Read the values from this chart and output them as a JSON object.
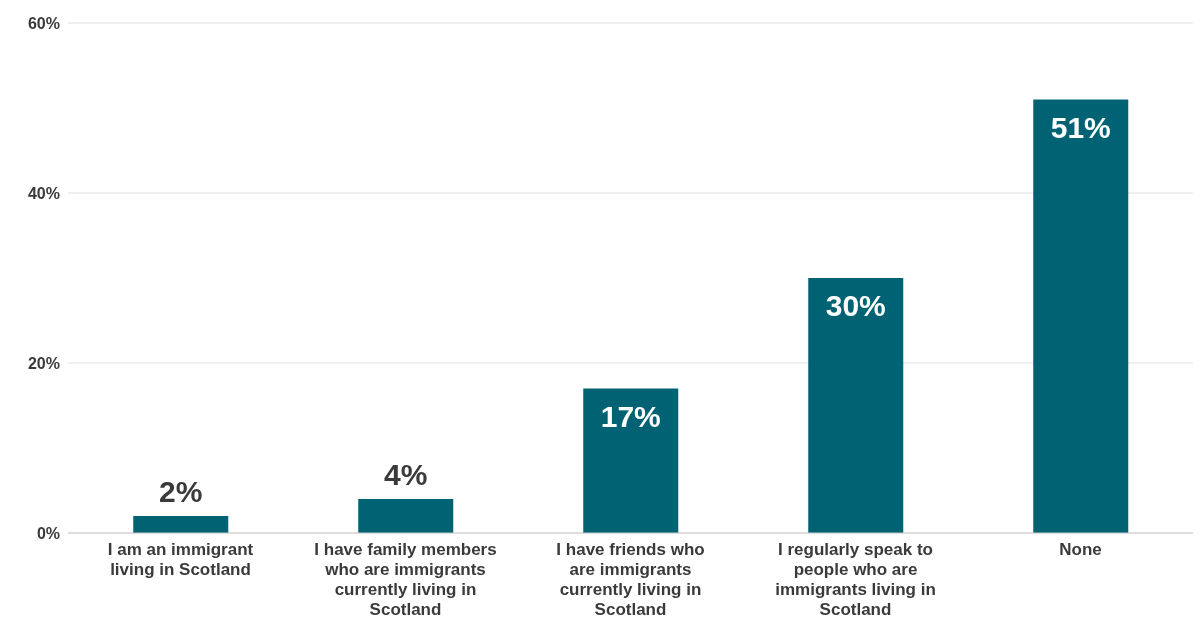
{
  "chart_data": {
    "type": "bar",
    "categories": [
      "I am an immigrant living in Scotland",
      "I have family members who are immigrants currently living in Scotland",
      "I have friends who are immigrants currently living in Scotland",
      "I regularly speak to people who are immigrants living in Scotland",
      "None"
    ],
    "values": [
      2,
      4,
      17,
      30,
      51
    ],
    "value_labels": [
      "2%",
      "4%",
      "17%",
      "30%",
      "51%"
    ],
    "color": "#006272",
    "ylim": [
      0,
      60
    ],
    "yticks": [
      {
        "value": 0,
        "label": "0%"
      },
      {
        "value": 20,
        "label": "20%"
      },
      {
        "value": 40,
        "label": "40%"
      },
      {
        "value": 60,
        "label": "60%"
      }
    ],
    "grid": "y"
  }
}
